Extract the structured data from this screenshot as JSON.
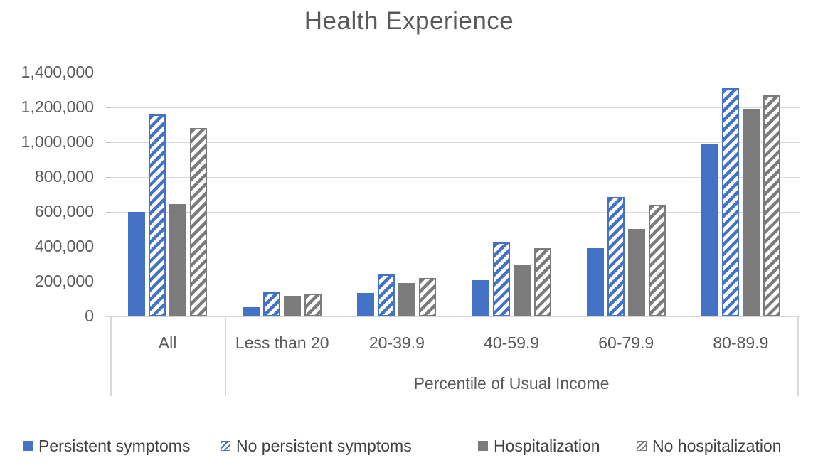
{
  "chart_data": {
    "type": "bar",
    "title": "Health Experience",
    "xlabel": "Percentile of Usual Income",
    "ylabel": "",
    "categories": [
      "All",
      "Less than 20",
      "20-39.9",
      "40-59.9",
      "60-79.9",
      "80-89.9"
    ],
    "series": [
      {
        "name": "Persistent symptoms",
        "color": "#4472C4",
        "pattern": "solid",
        "values": [
          600000,
          55000,
          135000,
          210000,
          390000,
          990000
        ]
      },
      {
        "name": "No persistent symptoms",
        "color": "#4472C4",
        "pattern": "diagonal-hatch",
        "values": [
          1160000,
          140000,
          240000,
          425000,
          685000,
          1310000
        ]
      },
      {
        "name": "Hospitalization",
        "color": "#7B7B7B",
        "pattern": "solid",
        "values": [
          645000,
          120000,
          190000,
          295000,
          500000,
          1190000
        ]
      },
      {
        "name": "No hospitalization",
        "color": "#7B7B7B",
        "pattern": "diagonal-hatch",
        "values": [
          1080000,
          130000,
          220000,
          390000,
          640000,
          1270000
        ]
      }
    ],
    "y_axis": {
      "min": 0,
      "max": 1400000,
      "tick_step": 200000,
      "tick_labels": [
        "0",
        "200,000",
        "400,000",
        "600,000",
        "800,000",
        "1,000,000",
        "1,200,000",
        "1,400,000"
      ]
    },
    "grid": true,
    "legend_position": "bottom",
    "colors": {
      "grid": "#d9d9d9",
      "axis_text": "#595959",
      "legend_text": "#404040",
      "background": "#ffffff"
    }
  }
}
